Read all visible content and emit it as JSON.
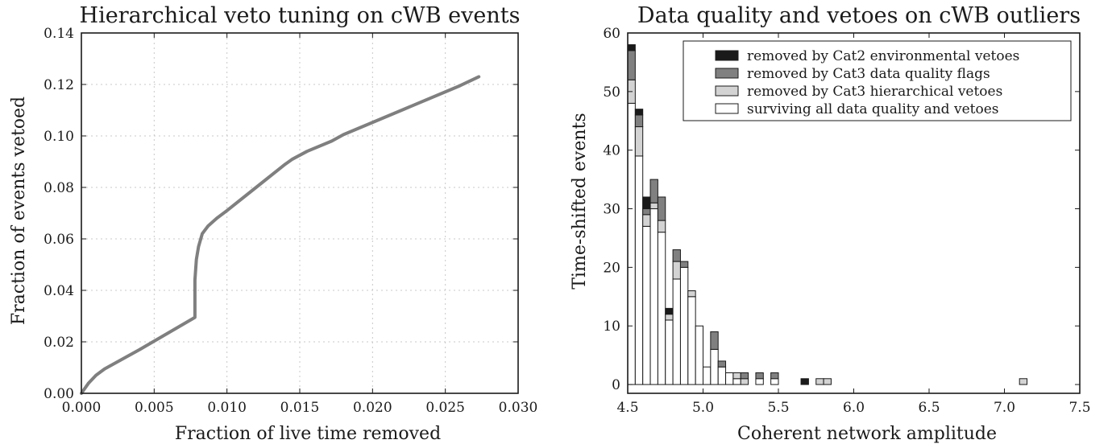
{
  "chart_data": [
    {
      "type": "line",
      "title": "Hierarchical veto tuning on cWB events",
      "xlabel": "Fraction of live time removed",
      "ylabel": "Fraction of events vetoed",
      "xlim": [
        0.0,
        0.03
      ],
      "ylim": [
        0.0,
        0.14
      ],
      "xticks": [
        "0.000",
        "0.005",
        "0.010",
        "0.015",
        "0.020",
        "0.025",
        "0.030"
      ],
      "yticks": [
        "0.00",
        "0.02",
        "0.04",
        "0.06",
        "0.08",
        "0.10",
        "0.12",
        "0.14"
      ],
      "grid": true,
      "color": "#7f7f7f",
      "series": [
        {
          "x": [
            0.0,
            0.0005,
            0.001,
            0.0016,
            0.004,
            0.0078,
            0.0078,
            0.0079,
            0.00805,
            0.0083,
            0.0087,
            0.0093,
            0.01,
            0.012,
            0.014,
            0.0145,
            0.0155,
            0.0172,
            0.018,
            0.022,
            0.026,
            0.0273
          ],
          "y": [
            0.0,
            0.004,
            0.007,
            0.0095,
            0.017,
            0.0295,
            0.044,
            0.052,
            0.057,
            0.062,
            0.065,
            0.068,
            0.071,
            0.08,
            0.089,
            0.091,
            0.094,
            0.098,
            0.1005,
            0.11,
            0.1195,
            0.123
          ]
        }
      ]
    },
    {
      "type": "bar",
      "title": "Data  quality and vetoes on cWB outliers",
      "xlabel": "Coherent network amplitude",
      "ylabel": "Time-shifted events",
      "xlim": [
        4.5,
        7.5
      ],
      "ylim": [
        -1.5,
        60
      ],
      "xticks": [
        "4.5",
        "5.0",
        "5.5",
        "6.0",
        "6.5",
        "7.0",
        "7.5"
      ],
      "yticks": [
        "0",
        "10",
        "20",
        "30",
        "40",
        "50",
        "60"
      ],
      "bin_width": 0.05,
      "stacked": true,
      "legend_position": "top-right",
      "bins": [
        4.5,
        4.55,
        4.6,
        4.65,
        4.7,
        4.75,
        4.8,
        4.85,
        4.9,
        4.95,
        5.0,
        5.05,
        5.1,
        5.15,
        5.2,
        5.25,
        5.3,
        5.35,
        5.4,
        5.45,
        5.5,
        5.55,
        5.6,
        5.65,
        5.7,
        5.75,
        5.8,
        5.85,
        7.1
      ],
      "series": [
        {
          "name": "surviving all data quality and vetoes",
          "color": "#ffffff",
          "values": [
            48,
            39,
            27,
            30,
            26,
            11,
            18,
            20,
            15,
            10,
            3,
            6,
            3,
            2,
            1,
            0,
            0,
            1,
            0,
            1,
            0,
            0,
            0,
            0,
            0,
            0,
            0,
            0,
            0
          ]
        },
        {
          "name": "removed by Cat3 hierarchical vetoes",
          "color": "#d3d3d3",
          "values": [
            4,
            5,
            2,
            1,
            2,
            1,
            3,
            0,
            1,
            0,
            0,
            0,
            0,
            0,
            1,
            1,
            0,
            0,
            0,
            0,
            0,
            0,
            0,
            0,
            0,
            1,
            1,
            0,
            1
          ]
        },
        {
          "name": "removed by Cat3 data quality flags",
          "color": "#808080",
          "values": [
            5,
            2,
            1,
            4,
            4,
            0,
            2,
            1,
            0,
            0,
            0,
            3,
            1,
            0,
            0,
            1,
            0,
            1,
            0,
            1,
            0,
            0,
            0,
            0,
            0,
            0,
            0,
            0,
            0
          ]
        },
        {
          "name": "removed by Cat2 environmental vetoes",
          "color": "#1a1a1a",
          "values": [
            1,
            1,
            2,
            0,
            0,
            1,
            0,
            0,
            0,
            0,
            0,
            0,
            0,
            0,
            0,
            0,
            0,
            0,
            0,
            0,
            0,
            0,
            0,
            1,
            0,
            0,
            0,
            0,
            0
          ]
        }
      ]
    }
  ]
}
